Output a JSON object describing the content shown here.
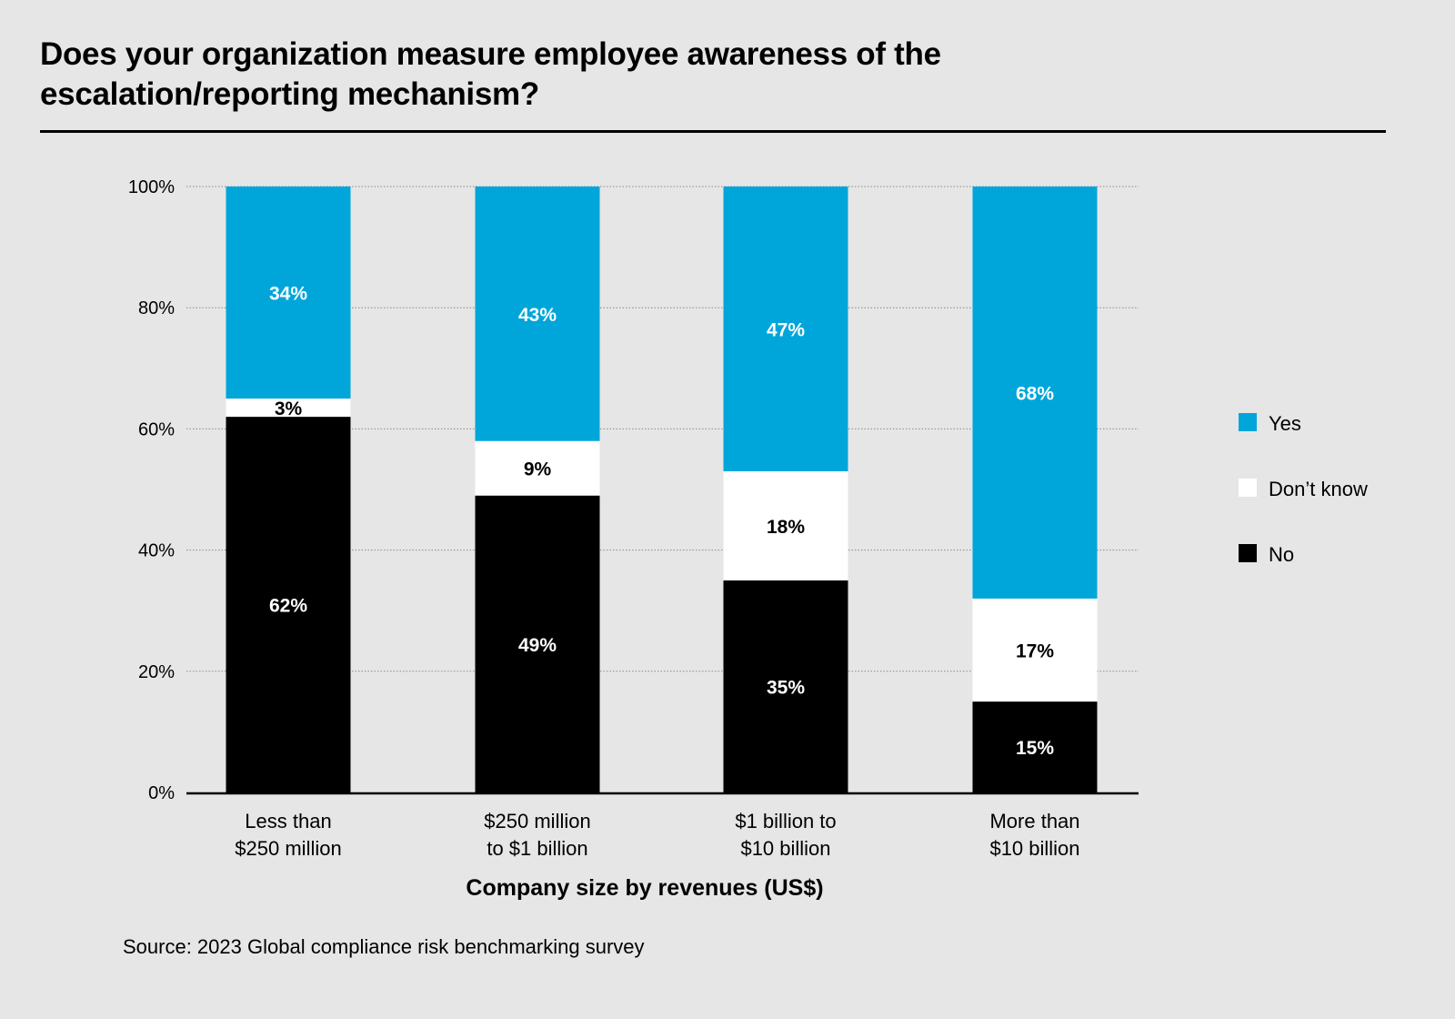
{
  "title": "Does your organization measure employee awareness of the escalation/reporting mechanism?",
  "source": "Source: 2023 Global compliance risk benchmarking survey",
  "chart_data": {
    "type": "bar",
    "stacked": true,
    "title": "Does your organization measure employee awareness of the escalation/reporting mechanism?",
    "xlabel": "Company size by revenues (US$)",
    "ylabel": "",
    "ylim": [
      0,
      100
    ],
    "yticks": [
      "0%",
      "20%",
      "40%",
      "60%",
      "80%",
      "100%"
    ],
    "ytick_values": [
      0,
      20,
      40,
      60,
      80,
      100
    ],
    "grid": true,
    "categories": [
      [
        "Less than",
        "$250 million"
      ],
      [
        "$250 million",
        "to $1 billion"
      ],
      [
        "$1 billion to",
        "$10 billion"
      ],
      [
        "More than",
        "$10 billion"
      ]
    ],
    "series": [
      {
        "name": "No",
        "color": "#000000",
        "label_color": "#ffffff",
        "values": [
          62,
          49,
          35,
          15
        ]
      },
      {
        "name": "Don’t know",
        "color": "#ffffff",
        "label_color": "#000000",
        "values": [
          3,
          9,
          18,
          17
        ]
      },
      {
        "name": "Yes",
        "color": "#00a6d9",
        "label_color": "#ffffff",
        "values": [
          34,
          43,
          47,
          68
        ]
      }
    ],
    "legend": {
      "position": "right",
      "order": [
        "Yes",
        "Don’t know",
        "No"
      ]
    }
  }
}
